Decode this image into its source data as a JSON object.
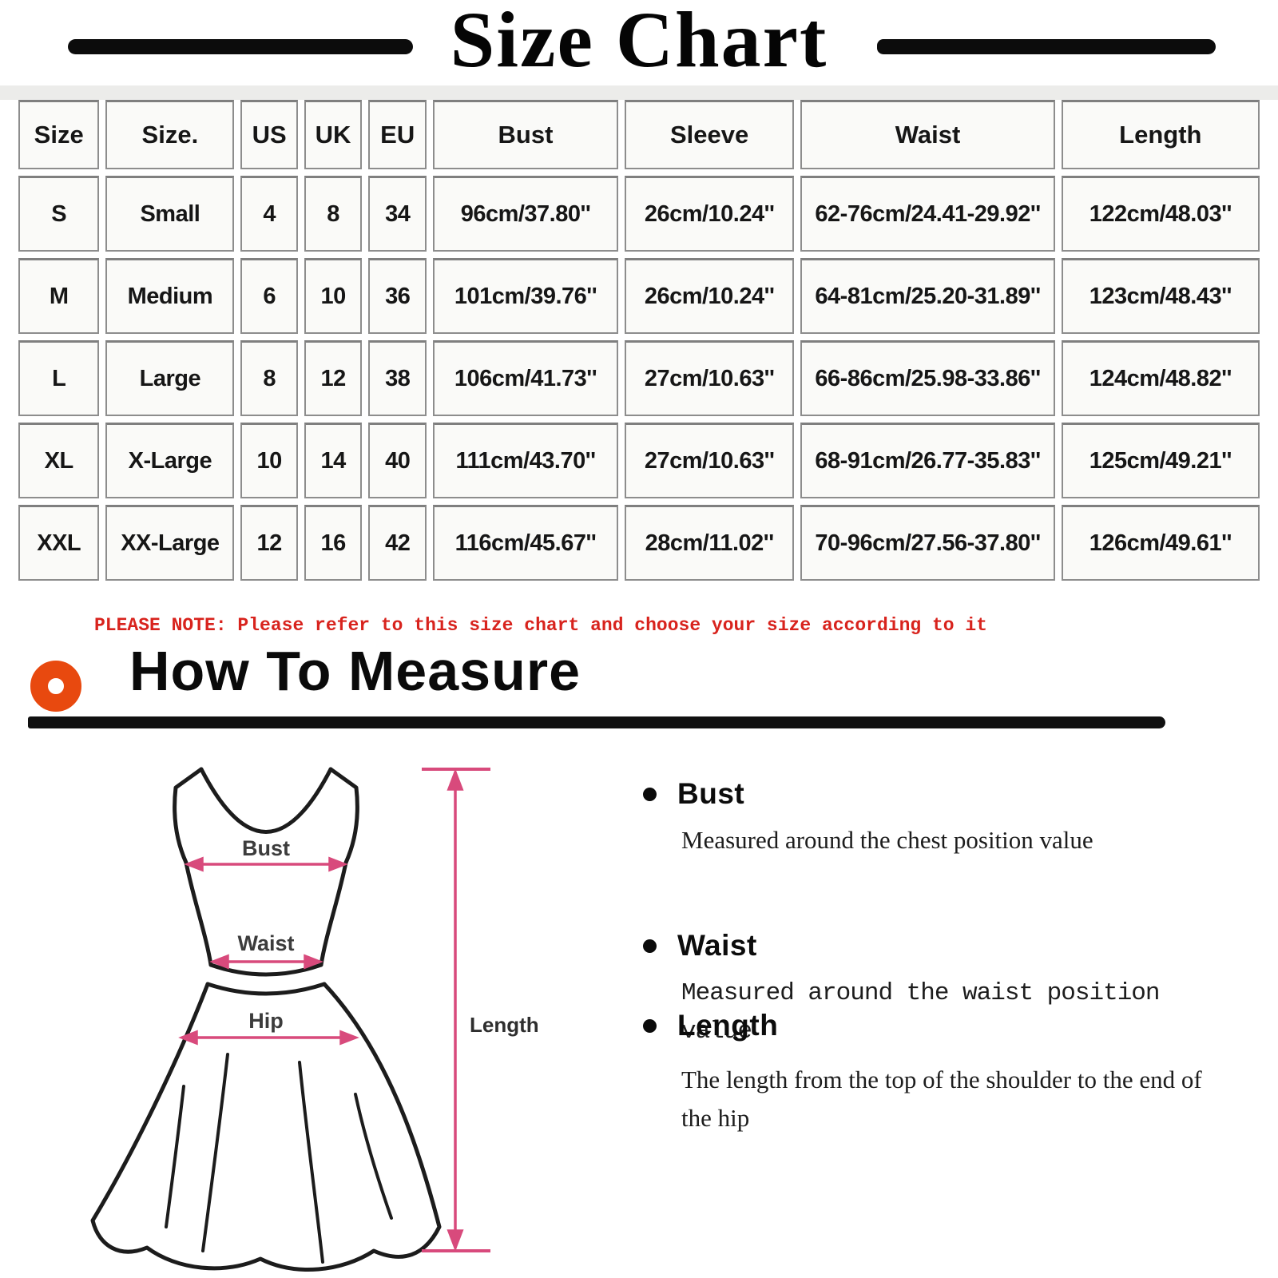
{
  "title": "Size Chart",
  "table": {
    "headers": [
      "Size",
      "Size.",
      "US",
      "UK",
      "EU",
      "Bust",
      "Sleeve",
      "Waist",
      "Length"
    ],
    "rows": [
      [
        "S",
        "Small",
        "4",
        "8",
        "34",
        "96cm/37.80''",
        "26cm/10.24''",
        "62-76cm/24.41-29.92''",
        "122cm/48.03''"
      ],
      [
        "M",
        "Medium",
        "6",
        "10",
        "36",
        "101cm/39.76''",
        "26cm/10.24''",
        "64-81cm/25.20-31.89''",
        "123cm/48.43''"
      ],
      [
        "L",
        "Large",
        "8",
        "12",
        "38",
        "106cm/41.73''",
        "27cm/10.63''",
        "66-86cm/25.98-33.86''",
        "124cm/48.82''"
      ],
      [
        "XL",
        "X-Large",
        "10",
        "14",
        "40",
        "111cm/43.70''",
        "27cm/10.63''",
        "68-91cm/26.77-35.83''",
        "125cm/49.21''"
      ],
      [
        "XXL",
        "XX-Large",
        "12",
        "16",
        "42",
        "116cm/45.67''",
        "28cm/11.02''",
        "70-96cm/27.56-37.80''",
        "126cm/49.61''"
      ]
    ]
  },
  "note": "PLEASE NOTE: Please refer to this size chart and choose your size according to it",
  "how_to_measure": {
    "heading": "How To Measure",
    "items": [
      {
        "label": "Bust",
        "desc": "Measured around the chest position value"
      },
      {
        "label": "Waist",
        "desc": "Measured around the waist position value"
      },
      {
        "label": "Length",
        "desc": "The length from the top of the shoulder to the end of the hip"
      }
    ]
  },
  "diagram": {
    "bust_label": "Bust",
    "waist_label": "Waist",
    "hip_label": "Hip",
    "length_label": "Length"
  },
  "colors": {
    "accent_orange": "#e8490f",
    "note_red": "#d8231d",
    "arrow_pink": "#d84a7c",
    "outline_black": "#1c1c1c"
  }
}
